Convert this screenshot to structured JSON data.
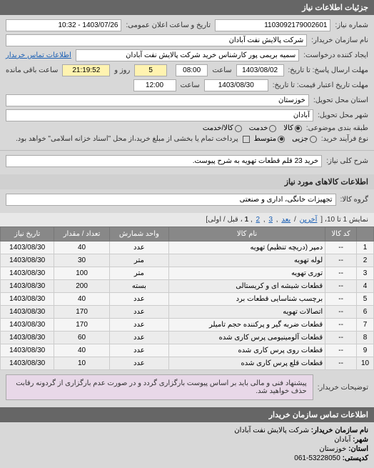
{
  "header": {
    "title": "جزئیات اطلاعات نیاز"
  },
  "form": {
    "reqno_lbl": "شماره نیاز:",
    "reqno": "1103092179002601",
    "pubdate_lbl": "تاریخ و ساعت اعلان عمومی:",
    "pubdate": "1403/07/26 - 10:32",
    "buyer_lbl": "نام سازمان خریدار:",
    "buyer": "شرکت پالایش نفت آبادان",
    "requester_lbl": "ایجاد کننده درخواست:",
    "requester": "سمیه بریمی پور کارشناس خرید شرکت پالایش نفت آبادان",
    "contact_link": "اطلاعات تماس خریدار",
    "deadline_lbl": "مهلت ارسال پاسخ: تا تاریخ:",
    "deadline_date": "1403/08/02",
    "hour_lbl": "ساعت",
    "deadline_hour": "08:00",
    "remain_days": "5",
    "days_lbl": "روز و",
    "remain_time": "21:19:52",
    "remain_lbl": "ساعت باقی مانده",
    "validity_lbl": "مهلت تاریخ اعتبار قیمت: تا تاریخ:",
    "validity_date": "1403/08/30",
    "validity_hour": "12:00",
    "delivery_state_lbl": "استان محل تحویل:",
    "delivery_state": "خوزستان",
    "delivery_city_lbl": "شهر محل تحویل:",
    "delivery_city": "آبادان",
    "type_lbl": "طبقه بندی موضوعی:",
    "type_goods": "کالا",
    "type_service": "خدمت",
    "type_both": "کالا/خدمت",
    "buytype_lbl": "نوع فرآیند خرید:",
    "bt_small": "جزیی",
    "bt_mid": "متوسط",
    "bt_note": "پرداخت تمام یا بخشی از مبلغ خرید،از محل \"اسناد خزانه اسلامی\" خواهد بود.",
    "desc_lbl": "شرح کلی نیاز:",
    "desc": "خرید 23 قلم قطعات تهویه به شرح پیوست."
  },
  "items_header": "اطلاعات کالاهای مورد نیاز",
  "group_lbl": "گروه کالا:",
  "group_val": "تجهیزات خانگی، اداری و صنعتی",
  "pager": {
    "text1": "نمایش 1 تا 10، [",
    "last": "آخرین",
    "next": "بعد",
    "p3": "3",
    "p2": "2",
    "p1": "1",
    "text2": "، قبل / اولی]"
  },
  "cols": {
    "n": " ",
    "code": "کد کالا",
    "name": "نام کالا",
    "unit": "واحد شمارش",
    "qty": "تعداد / مقدار",
    "date": "تاریخ نیاز"
  },
  "rows": [
    {
      "n": "1",
      "code": "--",
      "name": "دمپر (دریچه تنظیم) تهویه",
      "unit": "عدد",
      "qty": "40",
      "date": "1403/08/30"
    },
    {
      "n": "2",
      "code": "--",
      "name": "لوله تهویه",
      "unit": "متر",
      "qty": "30",
      "date": "1403/08/30"
    },
    {
      "n": "3",
      "code": "--",
      "name": "توری تهویه",
      "unit": "متر",
      "qty": "100",
      "date": "1403/08/30"
    },
    {
      "n": "4",
      "code": "--",
      "name": "قطعات شیشه ای و کریستالی",
      "unit": "بسته",
      "qty": "200",
      "date": "1403/08/30"
    },
    {
      "n": "5",
      "code": "--",
      "name": "برچسب شناسایی قطعات برد",
      "unit": "عدد",
      "qty": "40",
      "date": "1403/08/30"
    },
    {
      "n": "6",
      "code": "--",
      "name": "اتصالات تهویه",
      "unit": "عدد",
      "qty": "170",
      "date": "1403/08/30"
    },
    {
      "n": "7",
      "code": "--",
      "name": "قطعات ضربه گیر و پرکننده حجم تامیلر",
      "unit": "عدد",
      "qty": "170",
      "date": "1403/08/30"
    },
    {
      "n": "8",
      "code": "--",
      "name": "قطعات آلومینیومی پرس کاری شده",
      "unit": "عدد",
      "qty": "60",
      "date": "1403/08/30"
    },
    {
      "n": "9",
      "code": "--",
      "name": "قطعات روی پرس کاری شده",
      "unit": "عدد",
      "qty": "40",
      "date": "1403/08/30"
    },
    {
      "n": "10",
      "code": "--",
      "name": "قطعات قلع پرس کاری شده",
      "unit": "عدد",
      "qty": "10",
      "date": "1403/08/30"
    }
  ],
  "note_lbl": "توضیحات خریدار:",
  "note_text": "پیشنهاد فنی و مالی باید بر اساس پیوست بارگزاری گردد و در صورت عدم بارگزاری از گردونه رقابت حذف خواهید شد.",
  "footer_title": "اطلاعات تماس سازمان خریدار",
  "footer": {
    "org_lbl": "نام سازمان خریدار:",
    "org": "شرکت پالایش نفت آبادان",
    "city_lbl": "شهر:",
    "city": "آبادان",
    "state_lbl": "استان:",
    "state": "خوزستان",
    "post_lbl": "کدپستی:",
    "post": "53228050-061"
  }
}
